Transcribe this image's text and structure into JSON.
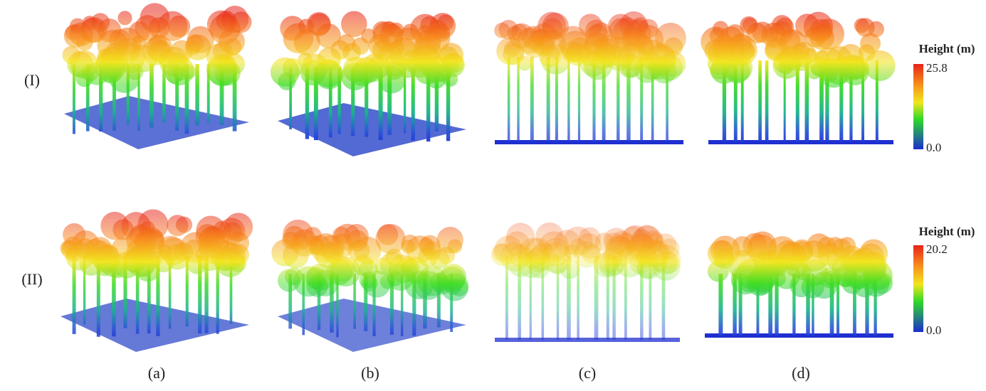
{
  "rows": [
    {
      "label": "(I)",
      "colorbar": {
        "title": "Height (m)",
        "max": "25.8",
        "min": "0.0"
      }
    },
    {
      "label": "(II)",
      "colorbar": {
        "title": "Height (m)",
        "max": "20.2",
        "min": "0.0"
      }
    }
  ],
  "columns": [
    "(a)",
    "(b)",
    "(c)",
    "(d)"
  ]
}
